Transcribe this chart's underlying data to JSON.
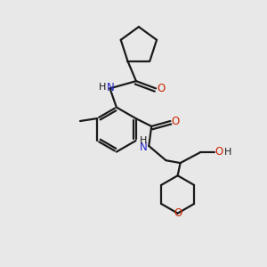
{
  "bg_color": "#e8e8e8",
  "bond_color": "#1a1a1a",
  "N_color": "#2222cc",
  "O_color": "#cc2200",
  "C_color": "#1a1a1a",
  "line_width": 1.6,
  "fig_size": [
    3.0,
    3.0
  ],
  "dpi": 100,
  "xlim": [
    0,
    10
  ],
  "ylim": [
    0,
    10
  ]
}
